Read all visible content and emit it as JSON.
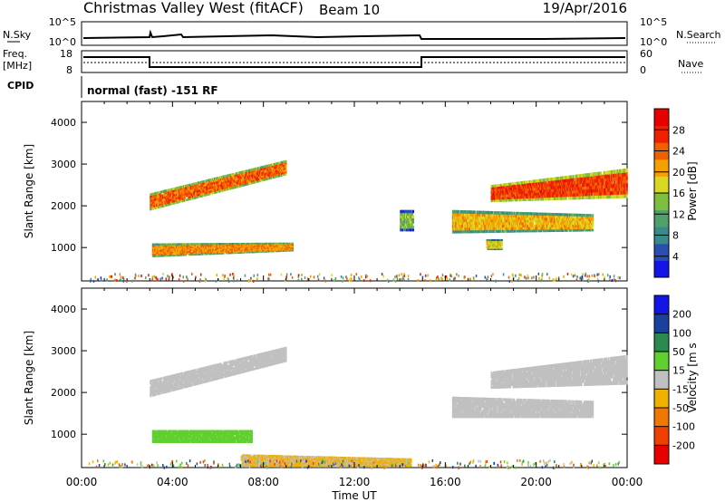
{
  "header": {
    "station": "Christmas Valley West (fitACF)",
    "beam": "Beam 10",
    "date": "19/Apr/2016"
  },
  "status_panels": {
    "nsky_label": "N.Sky",
    "nsky_ticks": [
      "10^5",
      "10^0"
    ],
    "nsearch_label": "N.Search",
    "nsearch_ticks": [
      "10^5",
      "10^0"
    ],
    "freq_label": "Freq.",
    "freq_unit": "[MHz]",
    "freq_ticks": [
      "18",
      "8"
    ],
    "nave_label": "Nave",
    "nave_ticks": [
      "60",
      "0"
    ],
    "cpid_label": "CPID",
    "cpid_text": "normal (fast) -151 RF"
  },
  "chart_data": [
    {
      "type": "heatmap",
      "panel": "power",
      "ylabel": "Slant Range [km]",
      "yticks": [
        "1000",
        "2000",
        "3000",
        "4000"
      ],
      "ylim": [
        200,
        4500
      ],
      "xlim": [
        0,
        24
      ],
      "colorbar_label": "Power [dB]",
      "colorbar_ticks": [
        "4",
        "8",
        "12",
        "16",
        "20",
        "24",
        "28"
      ],
      "colorbar_colors": [
        "#1414e6",
        "#2a4fb0",
        "#3a8a8a",
        "#4fa06a",
        "#7fbf3f",
        "#d8d820",
        "#f5a000",
        "#f06000",
        "#ee2000",
        "#e80000"
      ],
      "regions": [
        {
          "t0": 3.0,
          "t1": 9.0,
          "r0": 1900,
          "r1": 2300,
          "r0e": 2750,
          "r1e": 3100,
          "val": 24
        },
        {
          "t0": 3.1,
          "t1": 9.3,
          "r0": 780,
          "r1": 1100,
          "r0e": 920,
          "r1e": 1120,
          "val": 22
        },
        {
          "t0": 18.0,
          "t1": 24.0,
          "r0": 2100,
          "r1": 2500,
          "r0e": 2200,
          "r1e": 2900,
          "val": 26
        },
        {
          "t0": 16.3,
          "t1": 22.5,
          "r0": 1350,
          "r1": 1900,
          "r0e": 1400,
          "r1e": 1800,
          "val": 20
        },
        {
          "t0": 14.0,
          "t1": 14.6,
          "r0": 1400,
          "r1": 1900,
          "r0e": 1400,
          "r1e": 1900,
          "val": 14
        },
        {
          "t0": 17.8,
          "t1": 18.5,
          "r0": 950,
          "r1": 1200,
          "r0e": 950,
          "r1e": 1200,
          "val": 18
        }
      ]
    },
    {
      "type": "heatmap",
      "panel": "velocity",
      "ylabel": "Slant Range [km]",
      "yticks": [
        "1000",
        "2000",
        "3000",
        "4000"
      ],
      "ylim": [
        200,
        4500
      ],
      "xlim": [
        0,
        24
      ],
      "xticks": [
        "00:00",
        "04:00",
        "08:00",
        "12:00",
        "16:00",
        "20:00",
        "00:00"
      ],
      "xlabel": "Time UT",
      "colorbar_label": "Velocity [m s",
      "colorbar_ticks": [
        "-200",
        "-100",
        "-50",
        "-15",
        "15",
        "50",
        "100",
        "200"
      ],
      "colorbar_colors": [
        "#e80000",
        "#f04000",
        "#f07800",
        "#f0b000",
        "#c0c0c0",
        "#60d030",
        "#2a8a50",
        "#1a40a0",
        "#1414e6"
      ],
      "regions": [
        {
          "t0": 3.0,
          "t1": 9.0,
          "r0": 1900,
          "r1": 2300,
          "r0e": 2750,
          "r1e": 3100,
          "val": 0
        },
        {
          "t0": 3.1,
          "t1": 7.5,
          "r0": 800,
          "r1": 1100,
          "r0e": 800,
          "r1e": 1100,
          "val": 40
        },
        {
          "t0": 18.0,
          "t1": 24.0,
          "r0": 2100,
          "r1": 2500,
          "r0e": 2200,
          "r1e": 2900,
          "val": 0
        },
        {
          "t0": 16.3,
          "t1": 22.5,
          "r0": 1400,
          "r1": 1900,
          "r0e": 1400,
          "r1e": 1800,
          "val": 0
        },
        {
          "t0": 7.0,
          "t1": 14.5,
          "r0": 220,
          "r1": 520,
          "r0e": 220,
          "r1e": 420,
          "val": -30
        }
      ]
    }
  ]
}
